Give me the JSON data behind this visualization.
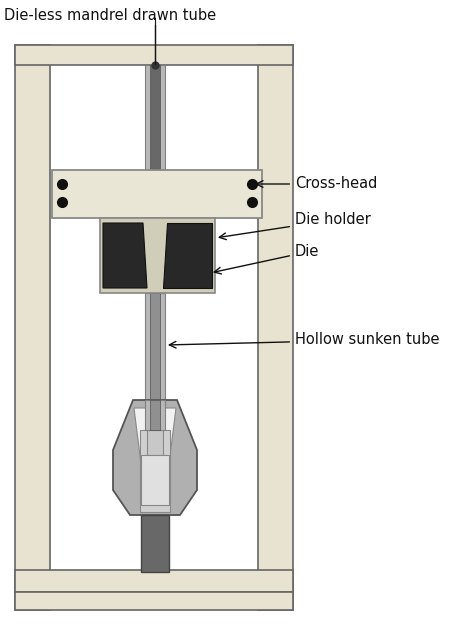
{
  "title": "Die-less mandrel drawn tube",
  "labels": {
    "cross_head": "Cross-head",
    "die_holder": "Die holder",
    "die": "Die",
    "hollow_sunken_tube": "Hollow sunken tube"
  },
  "colors": {
    "background": "#ffffff",
    "frame_fill": "#e8e3d0",
    "crosshead_fill": "#eae6d6",
    "die_holder_fill": "#d0ccb8",
    "die_fill": "#282828",
    "tube_light": "#b8b8b8",
    "tube_mid": "#909090",
    "tube_dark": "#686868",
    "rod_dark": "#585858",
    "gripper_outer": "#b0b0b0",
    "gripper_mid": "#c8c8c8",
    "gripper_light": "#d8d8d8",
    "gripper_white": "#f0f0f0",
    "post_dark": "#686868",
    "dot_color": "#101010",
    "label_color": "#111111",
    "edge_color": "#666666"
  },
  "figsize": [
    4.74,
    6.27
  ],
  "dpi": 100
}
